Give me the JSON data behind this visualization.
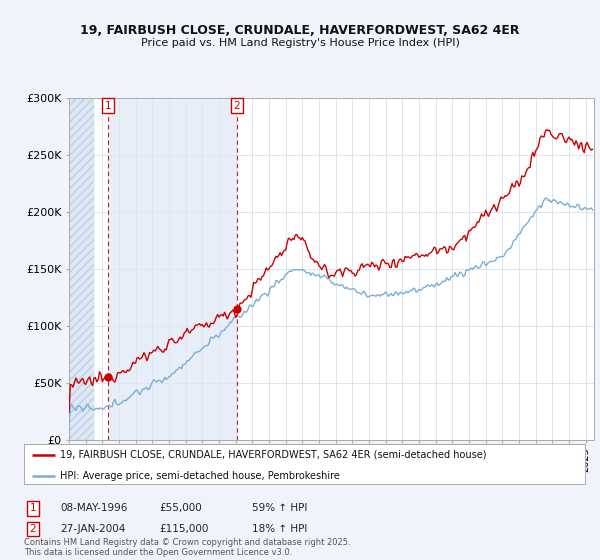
{
  "title_line1": "19, FAIRBUSH CLOSE, CRUNDALE, HAVERFORDWEST, SA62 4ER",
  "title_line2": "Price paid vs. HM Land Registry's House Price Index (HPI)",
  "background_color": "#f0f4fa",
  "plot_bg_color": "#ffffff",
  "red_color": "#cc0000",
  "blue_color": "#7aaed6",
  "annotation1_date": "08-MAY-1996",
  "annotation1_price": "£55,000",
  "annotation1_hpi": "59% ↑ HPI",
  "annotation2_date": "27-JAN-2004",
  "annotation2_price": "£115,000",
  "annotation2_hpi": "18% ↑ HPI",
  "legend_label1": "19, FAIRBUSH CLOSE, CRUNDALE, HAVERFORDWEST, SA62 4ER (semi-detached house)",
  "legend_label2": "HPI: Average price, semi-detached house, Pembrokeshire",
  "footer": "Contains HM Land Registry data © Crown copyright and database right 2025.\nThis data is licensed under the Open Government Licence v3.0.",
  "ylim": [
    0,
    300000
  ],
  "yticks": [
    0,
    50000,
    100000,
    150000,
    200000,
    250000,
    300000
  ],
  "ytick_labels": [
    "£0",
    "£50K",
    "£100K",
    "£150K",
    "£200K",
    "£250K",
    "£300K"
  ],
  "sale1_year": 1996.36,
  "sale1_price": 55000,
  "sale2_year": 2004.07,
  "sale2_price": 115000,
  "xmin": 1994.0,
  "xmax": 2025.5,
  "hatch_end": 1995.5,
  "shade_end": 2004.07
}
